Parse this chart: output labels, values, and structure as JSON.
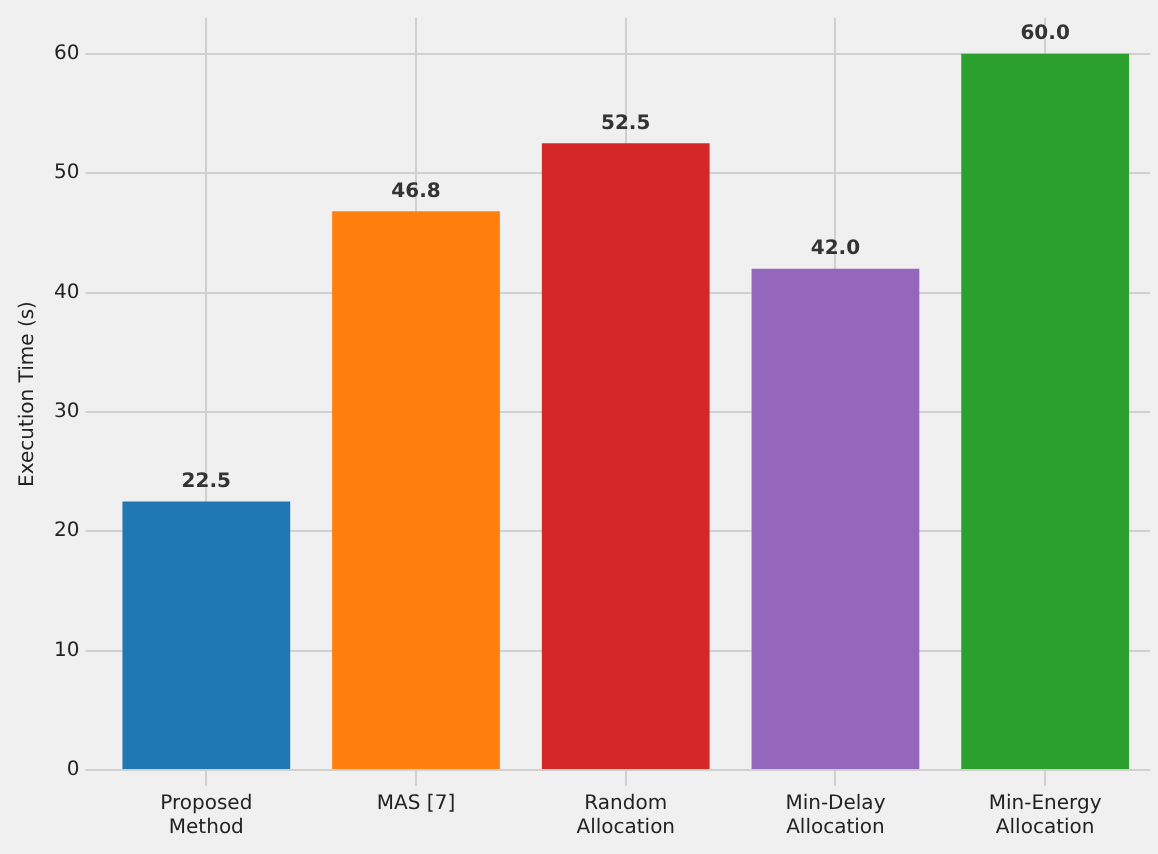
{
  "chart_data": {
    "type": "bar",
    "ylabel": "Execution Time (s)",
    "categories": [
      "Proposed Method",
      "MAS [7]",
      "Random Allocation",
      "Min-Delay Allocation",
      "Min-Energy Allocation"
    ],
    "values": [
      22.5,
      46.8,
      52.5,
      42.0,
      60.0
    ],
    "colors": [
      "#1f77b4",
      "#ff7f0e",
      "#d62728",
      "#9467bd",
      "#2ca02c"
    ],
    "value_labels": [
      "22.5",
      "46.8",
      "52.5",
      "42.0",
      "60.0"
    ],
    "ylim": [
      0,
      63
    ],
    "yticks": [
      0,
      10,
      20,
      30,
      40,
      50,
      60
    ],
    "grid": true,
    "legend": false
  }
}
